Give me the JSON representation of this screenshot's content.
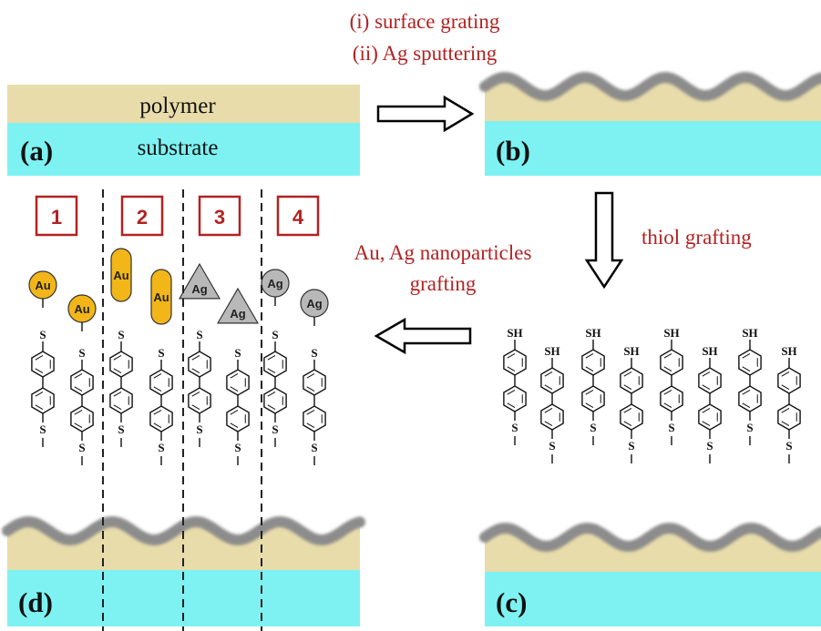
{
  "steps": {
    "step1": "(i) surface grating",
    "step2": "(ii) Ag sputtering",
    "thiol": "thiol grafting",
    "np1": "Au, Ag nanoparticles",
    "np2": "grafting"
  },
  "panels": {
    "a": "(a)",
    "b": "(b)",
    "c": "(c)",
    "d": "(d)"
  },
  "layers": {
    "polymer": "polymer",
    "substrate": "substrate"
  },
  "molecule": {
    "thiol_label": "SH",
    "sulfur_label": "S"
  },
  "particles": {
    "au": "Au",
    "ag": "Ag"
  },
  "zones": [
    "1",
    "2",
    "3",
    "4"
  ],
  "colors": {
    "accent_red": "#b22222",
    "polymer": "#e8dcaa",
    "substrate": "#7ef2f2",
    "silver": "#9a9a9a",
    "gold": "#f2b619",
    "ag_particle": "#b8b8b8"
  }
}
